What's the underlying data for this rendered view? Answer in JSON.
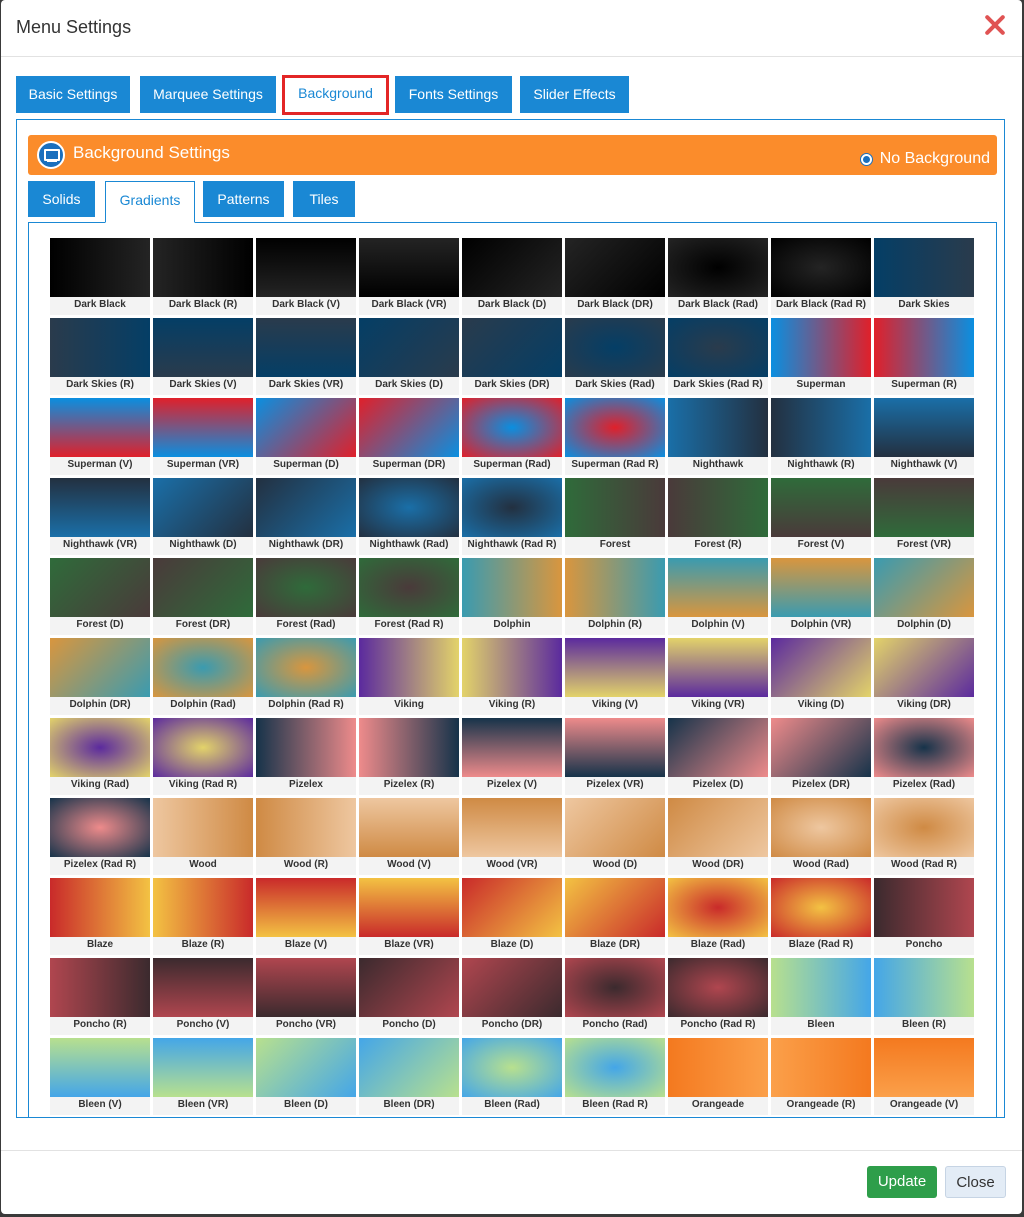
{
  "title": "Menu Settings",
  "tabs": [
    "Basic Settings",
    "Marquee Settings",
    "Background",
    "Fonts Settings",
    "Slider Effects"
  ],
  "active_tab": "Background",
  "section_title": "Background Settings",
  "no_background_label": "No Background",
  "subtabs": [
    "Solids",
    "Gradients",
    "Patterns",
    "Tiles"
  ],
  "active_subtab": "Gradients",
  "gradients": [
    {
      "label": "Dark Black",
      "a": "#000000",
      "b": "#242424",
      "dir": "0"
    },
    {
      "label": "Dark Black (R)",
      "a": "#000000",
      "b": "#242424",
      "dir": "1"
    },
    {
      "label": "Dark Black (V)",
      "a": "#000000",
      "b": "#242424",
      "dir": "2"
    },
    {
      "label": "Dark Black (VR)",
      "a": "#000000",
      "b": "#242424",
      "dir": "3"
    },
    {
      "label": "Dark Black (D)",
      "a": "#000000",
      "b": "#242424",
      "dir": "4"
    },
    {
      "label": "Dark Black (DR)",
      "a": "#000000",
      "b": "#242424",
      "dir": "5"
    },
    {
      "label": "Dark Black (Rad)",
      "a": "#000000",
      "b": "#242424",
      "dir": "6"
    },
    {
      "label": "Dark Black (Rad R)",
      "a": "#000000",
      "b": "#242424",
      "dir": "7"
    },
    {
      "label": "Dark Skies",
      "a": "#043e66",
      "b": "#2a3b4c",
      "dir": "0"
    },
    {
      "label": "Dark Skies (R)",
      "a": "#043e66",
      "b": "#2a3b4c",
      "dir": "1"
    },
    {
      "label": "Dark Skies (V)",
      "a": "#043e66",
      "b": "#2a3b4c",
      "dir": "2"
    },
    {
      "label": "Dark Skies (VR)",
      "a": "#043e66",
      "b": "#2a3b4c",
      "dir": "3"
    },
    {
      "label": "Dark Skies (D)",
      "a": "#043e66",
      "b": "#2a3b4c",
      "dir": "4"
    },
    {
      "label": "Dark Skies (DR)",
      "a": "#043e66",
      "b": "#2a3b4c",
      "dir": "5"
    },
    {
      "label": "Dark Skies (Rad)",
      "a": "#043e66",
      "b": "#2a3b4c",
      "dir": "6"
    },
    {
      "label": "Dark Skies (Rad R)",
      "a": "#043e66",
      "b": "#2a3b4c",
      "dir": "7"
    },
    {
      "label": "Superman",
      "a": "#0a8fe0",
      "b": "#e0202a",
      "dir": "0"
    },
    {
      "label": "Superman (R)",
      "a": "#0a8fe0",
      "b": "#e0202a",
      "dir": "1"
    },
    {
      "label": "Superman (V)",
      "a": "#0a8fe0",
      "b": "#e0202a",
      "dir": "2"
    },
    {
      "label": "Superman (VR)",
      "a": "#0a8fe0",
      "b": "#e0202a",
      "dir": "3"
    },
    {
      "label": "Superman (D)",
      "a": "#0a8fe0",
      "b": "#e0202a",
      "dir": "4"
    },
    {
      "label": "Superman (DR)",
      "a": "#0a8fe0",
      "b": "#e0202a",
      "dir": "5"
    },
    {
      "label": "Superman (Rad)",
      "a": "#0a8fe0",
      "b": "#e0202a",
      "dir": "6"
    },
    {
      "label": "Superman (Rad R)",
      "a": "#0a8fe0",
      "b": "#e0202a",
      "dir": "7"
    },
    {
      "label": "Nighthawk",
      "a": "#1a6fa8",
      "b": "#233040",
      "dir": "0"
    },
    {
      "label": "Nighthawk (R)",
      "a": "#1a6fa8",
      "b": "#233040",
      "dir": "1"
    },
    {
      "label": "Nighthawk (V)",
      "a": "#1a6fa8",
      "b": "#233040",
      "dir": "2"
    },
    {
      "label": "Nighthawk (VR)",
      "a": "#1a6fa8",
      "b": "#233040",
      "dir": "3"
    },
    {
      "label": "Nighthawk (D)",
      "a": "#1a6fa8",
      "b": "#233040",
      "dir": "4"
    },
    {
      "label": "Nighthawk (DR)",
      "a": "#1a6fa8",
      "b": "#233040",
      "dir": "5"
    },
    {
      "label": "Nighthawk (Rad)",
      "a": "#1a6fa8",
      "b": "#233040",
      "dir": "6"
    },
    {
      "label": "Nighthawk (Rad R)",
      "a": "#1a6fa8",
      "b": "#233040",
      "dir": "7"
    },
    {
      "label": "Forest",
      "a": "#2f6b3a",
      "b": "#4a3a3a",
      "dir": "0"
    },
    {
      "label": "Forest (R)",
      "a": "#2f6b3a",
      "b": "#4a3a3a",
      "dir": "1"
    },
    {
      "label": "Forest (V)",
      "a": "#2f6b3a",
      "b": "#4a3a3a",
      "dir": "2"
    },
    {
      "label": "Forest (VR)",
      "a": "#2f6b3a",
      "b": "#4a3a3a",
      "dir": "3"
    },
    {
      "label": "Forest (D)",
      "a": "#2f6b3a",
      "b": "#4a3a3a",
      "dir": "4"
    },
    {
      "label": "Forest (DR)",
      "a": "#2f6b3a",
      "b": "#4a3a3a",
      "dir": "5"
    },
    {
      "label": "Forest (Rad)",
      "a": "#2f6b3a",
      "b": "#4a3a3a",
      "dir": "6"
    },
    {
      "label": "Forest (Rad R)",
      "a": "#2f6b3a",
      "b": "#4a3a3a",
      "dir": "7"
    },
    {
      "label": "Dolphin",
      "a": "#3a9bb0",
      "b": "#d9963e",
      "dir": "0"
    },
    {
      "label": "Dolphin (R)",
      "a": "#3a9bb0",
      "b": "#d9963e",
      "dir": "1"
    },
    {
      "label": "Dolphin (V)",
      "a": "#3a9bb0",
      "b": "#d9963e",
      "dir": "2"
    },
    {
      "label": "Dolphin (VR)",
      "a": "#3a9bb0",
      "b": "#d9963e",
      "dir": "3"
    },
    {
      "label": "Dolphin (D)",
      "a": "#3a9bb0",
      "b": "#d9963e",
      "dir": "4"
    },
    {
      "label": "Dolphin (DR)",
      "a": "#3a9bb0",
      "b": "#d9963e",
      "dir": "5"
    },
    {
      "label": "Dolphin (Rad)",
      "a": "#3a9bb0",
      "b": "#d9963e",
      "dir": "6"
    },
    {
      "label": "Dolphin (Rad R)",
      "a": "#3a9bb0",
      "b": "#d9963e",
      "dir": "7"
    },
    {
      "label": "Viking",
      "a": "#5b2a9e",
      "b": "#e3d36a",
      "dir": "0"
    },
    {
      "label": "Viking (R)",
      "a": "#5b2a9e",
      "b": "#e3d36a",
      "dir": "1"
    },
    {
      "label": "Viking (V)",
      "a": "#5b2a9e",
      "b": "#e3d36a",
      "dir": "2"
    },
    {
      "label": "Viking (VR)",
      "a": "#5b2a9e",
      "b": "#e3d36a",
      "dir": "3"
    },
    {
      "label": "Viking (D)",
      "a": "#5b2a9e",
      "b": "#e3d36a",
      "dir": "4"
    },
    {
      "label": "Viking (DR)",
      "a": "#5b2a9e",
      "b": "#e3d36a",
      "dir": "5"
    },
    {
      "label": "Viking (Rad)",
      "a": "#5b2a9e",
      "b": "#e3d36a",
      "dir": "6"
    },
    {
      "label": "Viking (Rad R)",
      "a": "#5b2a9e",
      "b": "#e3d36a",
      "dir": "7"
    },
    {
      "label": "Pizelex",
      "a": "#16334a",
      "b": "#ee8b8b",
      "dir": "0"
    },
    {
      "label": "Pizelex (R)",
      "a": "#16334a",
      "b": "#ee8b8b",
      "dir": "1"
    },
    {
      "label": "Pizelex (V)",
      "a": "#16334a",
      "b": "#ee8b8b",
      "dir": "2"
    },
    {
      "label": "Pizelex (VR)",
      "a": "#16334a",
      "b": "#ee8b8b",
      "dir": "3"
    },
    {
      "label": "Pizelex (D)",
      "a": "#16334a",
      "b": "#ee8b8b",
      "dir": "4"
    },
    {
      "label": "Pizelex (DR)",
      "a": "#16334a",
      "b": "#ee8b8b",
      "dir": "5"
    },
    {
      "label": "Pizelex (Rad)",
      "a": "#16334a",
      "b": "#ee8b8b",
      "dir": "6"
    },
    {
      "label": "Pizelex (Rad R)",
      "a": "#16334a",
      "b": "#ee8b8b",
      "dir": "7"
    },
    {
      "label": "Wood",
      "a": "#eec7a0",
      "b": "#cf8a44",
      "dir": "0"
    },
    {
      "label": "Wood (R)",
      "a": "#eec7a0",
      "b": "#cf8a44",
      "dir": "1"
    },
    {
      "label": "Wood (V)",
      "a": "#eec7a0",
      "b": "#cf8a44",
      "dir": "2"
    },
    {
      "label": "Wood (VR)",
      "a": "#eec7a0",
      "b": "#cf8a44",
      "dir": "3"
    },
    {
      "label": "Wood (D)",
      "a": "#eec7a0",
      "b": "#cf8a44",
      "dir": "4"
    },
    {
      "label": "Wood (DR)",
      "a": "#eec7a0",
      "b": "#cf8a44",
      "dir": "5"
    },
    {
      "label": "Wood (Rad)",
      "a": "#eec7a0",
      "b": "#cf8a44",
      "dir": "6"
    },
    {
      "label": "Wood (Rad R)",
      "a": "#eec7a0",
      "b": "#cf8a44",
      "dir": "7"
    },
    {
      "label": "Blaze",
      "a": "#c92a2a",
      "b": "#f3c243",
      "dir": "0"
    },
    {
      "label": "Blaze (R)",
      "a": "#c92a2a",
      "b": "#f3c243",
      "dir": "1"
    },
    {
      "label": "Blaze (V)",
      "a": "#c92a2a",
      "b": "#f3c243",
      "dir": "2"
    },
    {
      "label": "Blaze (VR)",
      "a": "#c92a2a",
      "b": "#f3c243",
      "dir": "3"
    },
    {
      "label": "Blaze (D)",
      "a": "#c92a2a",
      "b": "#f3c243",
      "dir": "4"
    },
    {
      "label": "Blaze (DR)",
      "a": "#c92a2a",
      "b": "#f3c243",
      "dir": "5"
    },
    {
      "label": "Blaze (Rad)",
      "a": "#c92a2a",
      "b": "#f3c243",
      "dir": "6"
    },
    {
      "label": "Blaze (Rad R)",
      "a": "#c92a2a",
      "b": "#f3c243",
      "dir": "7"
    },
    {
      "label": "Poncho",
      "a": "#3b2a2e",
      "b": "#b0464f",
      "dir": "0"
    },
    {
      "label": "Poncho (R)",
      "a": "#3b2a2e",
      "b": "#b0464f",
      "dir": "1"
    },
    {
      "label": "Poncho (V)",
      "a": "#3b2a2e",
      "b": "#b0464f",
      "dir": "2"
    },
    {
      "label": "Poncho (VR)",
      "a": "#3b2a2e",
      "b": "#b0464f",
      "dir": "3"
    },
    {
      "label": "Poncho (D)",
      "a": "#3b2a2e",
      "b": "#b0464f",
      "dir": "4"
    },
    {
      "label": "Poncho (DR)",
      "a": "#3b2a2e",
      "b": "#b0464f",
      "dir": "5"
    },
    {
      "label": "Poncho (Rad)",
      "a": "#3b2a2e",
      "b": "#b0464f",
      "dir": "6"
    },
    {
      "label": "Poncho (Rad R)",
      "a": "#3b2a2e",
      "b": "#b0464f",
      "dir": "7"
    },
    {
      "label": "Bleen",
      "a": "#b8e08e",
      "b": "#44a6e8",
      "dir": "0"
    },
    {
      "label": "Bleen (R)",
      "a": "#b8e08e",
      "b": "#44a6e8",
      "dir": "1"
    },
    {
      "label": "Bleen (V)",
      "a": "#b8e08e",
      "b": "#44a6e8",
      "dir": "2"
    },
    {
      "label": "Bleen (VR)",
      "a": "#b8e08e",
      "b": "#44a6e8",
      "dir": "3"
    },
    {
      "label": "Bleen (D)",
      "a": "#b8e08e",
      "b": "#44a6e8",
      "dir": "4"
    },
    {
      "label": "Bleen (DR)",
      "a": "#b8e08e",
      "b": "#44a6e8",
      "dir": "5"
    },
    {
      "label": "Bleen (Rad)",
      "a": "#b8e08e",
      "b": "#44a6e8",
      "dir": "6"
    },
    {
      "label": "Bleen (Rad R)",
      "a": "#b8e08e",
      "b": "#44a6e8",
      "dir": "7"
    },
    {
      "label": "Orangeade",
      "a": "#f4791f",
      "b": "#fba04a",
      "dir": "0"
    },
    {
      "label": "Orangeade (R)",
      "a": "#f4791f",
      "b": "#fba04a",
      "dir": "1"
    },
    {
      "label": "Orangeade (V)",
      "a": "#f4791f",
      "b": "#fba04a",
      "dir": "2"
    }
  ],
  "buttons": {
    "update": "Update",
    "close": "Close"
  },
  "colors": {
    "primary": "#1a88d4",
    "accent": "#fb8c2b",
    "success": "#2e9e4a",
    "danger": "#e32626"
  }
}
